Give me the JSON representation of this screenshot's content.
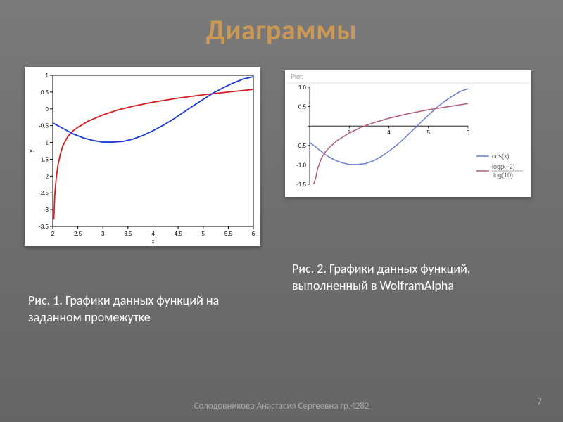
{
  "title": {
    "text": "Диаграммы",
    "color": "#cc9955",
    "fontsize": 40
  },
  "caption1": {
    "text": "Рис. 1. Графики данных функций на заданном промежутке",
    "color": "#ffffff"
  },
  "caption2": {
    "text": "Рис. 2. Графики данных функций, выполненный в WolframAlpha",
    "color": "#ffffff"
  },
  "footer": {
    "text": "Солодовникова Анастасия Сергеевна гр.4282",
    "color": "#a8a8a8"
  },
  "pageNumber": {
    "text": "7",
    "color": "#a8a8a8"
  },
  "chart1": {
    "type": "line",
    "background": "#ffffff",
    "plot_bg": "#ffffff",
    "xlim": [
      2,
      6
    ],
    "ylim": [
      -3.5,
      1
    ],
    "xtick_step": 0.5,
    "ytick_step": 0.5,
    "xlabel": "x",
    "ylabel": "y",
    "tick_fontsize": 8,
    "label_fontsize": 9,
    "axis_color": "#000000",
    "series": [
      {
        "name": "series-red",
        "color": "#d81e1e",
        "stroke_width": 1.8,
        "points": [
          [
            2.02,
            -3.3
          ],
          [
            2.04,
            -2.55
          ],
          [
            2.07,
            -2.05
          ],
          [
            2.1,
            -1.7
          ],
          [
            2.15,
            -1.35
          ],
          [
            2.2,
            -1.1
          ],
          [
            2.3,
            -0.82
          ],
          [
            2.4,
            -0.66
          ],
          [
            2.5,
            -0.55
          ],
          [
            2.7,
            -0.37
          ],
          [
            3.0,
            -0.18
          ],
          [
            3.3,
            -0.03
          ],
          [
            3.6,
            0.08
          ],
          [
            4.0,
            0.2
          ],
          [
            4.5,
            0.32
          ],
          [
            5.0,
            0.42
          ],
          [
            5.5,
            0.5
          ],
          [
            6.0,
            0.58
          ]
        ]
      },
      {
        "name": "series-blue",
        "color": "#1a3cd4",
        "stroke_width": 1.8,
        "points": [
          [
            2.0,
            -0.42
          ],
          [
            2.2,
            -0.58
          ],
          [
            2.4,
            -0.74
          ],
          [
            2.6,
            -0.86
          ],
          [
            2.8,
            -0.94
          ],
          [
            3.0,
            -0.99
          ],
          [
            3.2,
            -0.99
          ],
          [
            3.4,
            -0.97
          ],
          [
            3.6,
            -0.9
          ],
          [
            3.8,
            -0.79
          ],
          [
            4.0,
            -0.65
          ],
          [
            4.2,
            -0.49
          ],
          [
            4.4,
            -0.31
          ],
          [
            4.6,
            -0.11
          ],
          [
            4.8,
            0.09
          ],
          [
            5.0,
            0.28
          ],
          [
            5.2,
            0.47
          ],
          [
            5.4,
            0.63
          ],
          [
            5.6,
            0.77
          ],
          [
            5.8,
            0.89
          ],
          [
            6.0,
            0.96
          ]
        ]
      }
    ]
  },
  "chart2": {
    "type": "line",
    "header": "Plot:",
    "header_color": "#999999",
    "background": "#ffffff",
    "plot_bg": "#ffffff",
    "xlim": [
      2,
      6
    ],
    "ylim": [
      -1.5,
      1
    ],
    "xtick_labels": [
      3,
      4,
      5,
      6
    ],
    "ytick_step": 0.5,
    "tick_fontsize": 8,
    "axis_color": "#000000",
    "legend_items": [
      {
        "label": "cos(x)",
        "color": "#6a7bd6"
      },
      {
        "label": "log(x−2)",
        "color": "#b05a7a",
        "label2": "log(10)"
      }
    ],
    "series": [
      {
        "name": "series-purple-blue",
        "color": "#6a7bd6",
        "stroke_width": 1.5,
        "points": [
          [
            2.0,
            -0.42
          ],
          [
            2.2,
            -0.58
          ],
          [
            2.4,
            -0.74
          ],
          [
            2.6,
            -0.86
          ],
          [
            2.8,
            -0.94
          ],
          [
            3.0,
            -0.99
          ],
          [
            3.2,
            -0.99
          ],
          [
            3.4,
            -0.97
          ],
          [
            3.6,
            -0.9
          ],
          [
            3.8,
            -0.79
          ],
          [
            4.0,
            -0.65
          ],
          [
            4.2,
            -0.49
          ],
          [
            4.4,
            -0.31
          ],
          [
            4.6,
            -0.11
          ],
          [
            4.8,
            0.09
          ],
          [
            5.0,
            0.28
          ],
          [
            5.2,
            0.47
          ],
          [
            5.4,
            0.63
          ],
          [
            5.6,
            0.77
          ],
          [
            5.8,
            0.89
          ],
          [
            6.0,
            0.96
          ]
        ]
      },
      {
        "name": "series-mauve",
        "color": "#b05a7a",
        "stroke_width": 1.5,
        "points": [
          [
            2.1,
            -1.5
          ],
          [
            2.15,
            -1.35
          ],
          [
            2.2,
            -1.1
          ],
          [
            2.3,
            -0.82
          ],
          [
            2.4,
            -0.66
          ],
          [
            2.5,
            -0.55
          ],
          [
            2.7,
            -0.37
          ],
          [
            3.0,
            -0.18
          ],
          [
            3.3,
            -0.03
          ],
          [
            3.6,
            0.08
          ],
          [
            4.0,
            0.2
          ],
          [
            4.5,
            0.32
          ],
          [
            5.0,
            0.42
          ],
          [
            5.5,
            0.5
          ],
          [
            6.0,
            0.58
          ]
        ]
      }
    ]
  }
}
